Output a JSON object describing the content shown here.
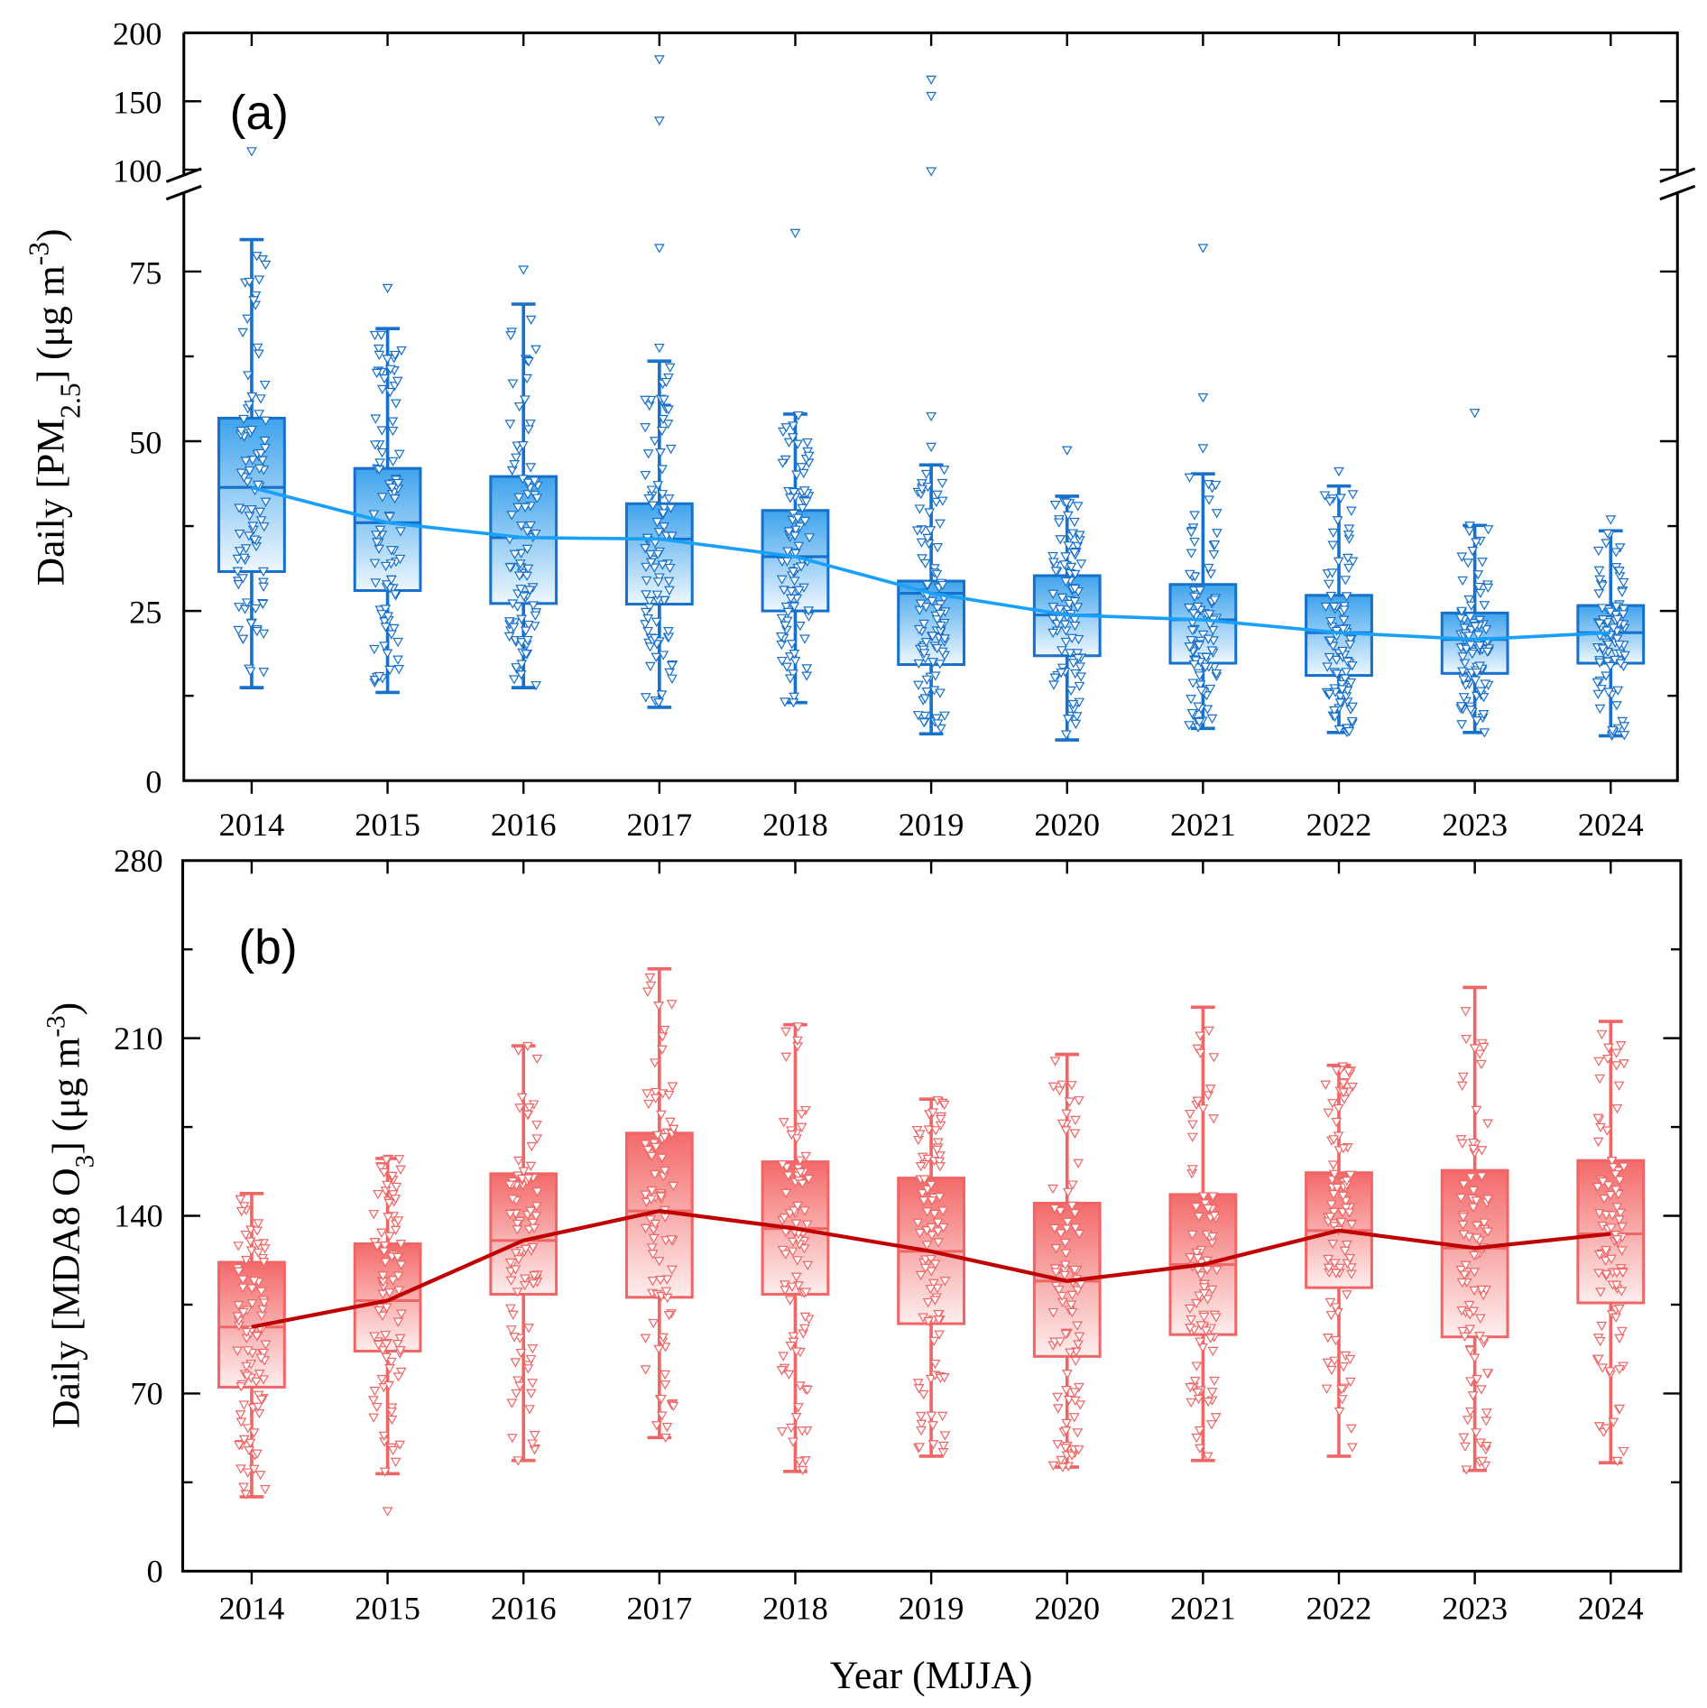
{
  "chart_data": [
    {
      "type": "box",
      "panel_label": "(a)",
      "ylabel": {
        "main": "Daily [PM",
        "sub": "2.5",
        "mid": "] (μg m",
        "sup": "-3",
        "end": ")"
      },
      "xlabel": "",
      "categories": [
        "2014",
        "2015",
        "2016",
        "2017",
        "2018",
        "2019",
        "2020",
        "2021",
        "2022",
        "2023",
        "2024"
      ],
      "y_axis_broken": true,
      "ylim_lower": [
        0,
        87
      ],
      "ylim_upper": [
        96,
        200
      ],
      "yticks_lower": [
        "0",
        "25",
        "50",
        "75"
      ],
      "yticks_upper": [
        "100",
        "150",
        "200"
      ],
      "color_edge": "#1670cc",
      "color_fill_top": "#3fa3ec",
      "color_fill_bottom": "#eef7fe",
      "color_line": "#18a0fa",
      "stats": [
        {
          "q1": 30.8,
          "median": 43.2,
          "q3": 53.4,
          "whisker_low": 13.7,
          "whisker_high": 79.7,
          "outliers": [
            113.6
          ]
        },
        {
          "q1": 28.0,
          "median": 38.0,
          "q3": 46.0,
          "whisker_low": 13.0,
          "whisker_high": 66.6,
          "outliers": [
            72.6
          ]
        },
        {
          "q1": 26.1,
          "median": 35.8,
          "q3": 44.8,
          "whisker_low": 13.7,
          "whisker_high": 70.2,
          "outliers": [
            75.3
          ]
        },
        {
          "q1": 26.0,
          "median": 35.6,
          "q3": 40.8,
          "whisker_low": 10.8,
          "whisker_high": 61.8,
          "outliers": [
            63.8,
            78.5,
            136,
            180.8
          ]
        },
        {
          "q1": 25.0,
          "median": 33.0,
          "q3": 39.8,
          "whisker_low": 11.5,
          "whisker_high": 54.0,
          "outliers": [
            80.7
          ]
        },
        {
          "q1": 17.1,
          "median": 27.6,
          "q3": 29.4,
          "whisker_low": 6.9,
          "whisker_high": 46.5,
          "outliers": [
            49.2,
            53.7,
            99,
            154,
            166
          ]
        },
        {
          "q1": 18.4,
          "median": 24.4,
          "q3": 30.2,
          "whisker_low": 6.0,
          "whisker_high": 41.9,
          "outliers": [
            48.7
          ]
        },
        {
          "q1": 17.3,
          "median": 23.7,
          "q3": 28.9,
          "whisker_low": 7.7,
          "whisker_high": 45.2,
          "outliers": [
            49.0,
            56.5,
            78.5
          ]
        },
        {
          "q1": 15.5,
          "median": 21.8,
          "q3": 27.3,
          "whisker_low": 7.1,
          "whisker_high": 43.4,
          "outliers": [
            45.6
          ]
        },
        {
          "q1": 15.8,
          "median": 20.8,
          "q3": 24.7,
          "whisker_low": 7.1,
          "whisker_high": 37.6,
          "outliers": [
            54.2
          ]
        },
        {
          "q1": 17.3,
          "median": 21.8,
          "q3": 25.8,
          "whisker_low": 6.6,
          "whisker_high": 36.8,
          "outliers": [
            38.5
          ]
        }
      ]
    },
    {
      "type": "box",
      "panel_label": "(b)",
      "ylabel": {
        "main": "Daily [MDA8 O",
        "sub": "3",
        "mid": "] (μg m",
        "sup": "-3",
        "end": ")"
      },
      "xlabel": "Year (MJJA)",
      "categories": [
        "2014",
        "2015",
        "2016",
        "2017",
        "2018",
        "2019",
        "2020",
        "2021",
        "2022",
        "2023",
        "2024"
      ],
      "ylim": [
        0,
        280
      ],
      "yticks": [
        "0",
        "70",
        "140",
        "210",
        "280"
      ],
      "color_edge": "#f06666",
      "color_fill_top": "#f46a6a",
      "color_fill_bottom": "#fdeeee",
      "color_line": "#c00000",
      "stats": [
        {
          "q1": 72.5,
          "median": 96.2,
          "q3": 121.7,
          "whisker_low": 29.3,
          "whisker_high": 148.8,
          "outliers": []
        },
        {
          "q1": 86.7,
          "median": 106.6,
          "q3": 129.0,
          "whisker_low": 38.4,
          "whisker_high": 162.6,
          "outliers": [
            23.7
          ]
        },
        {
          "q1": 109.1,
          "median": 130.3,
          "q3": 156.6,
          "whisker_low": 43.6,
          "whisker_high": 207.0,
          "outliers": []
        },
        {
          "q1": 107.9,
          "median": 141.9,
          "q3": 172.6,
          "whisker_low": 52.6,
          "whisker_high": 237.3,
          "outliers": []
        },
        {
          "q1": 109.1,
          "median": 135.0,
          "q3": 161.3,
          "whisker_low": 39.3,
          "whisker_high": 215.3,
          "outliers": []
        },
        {
          "q1": 97.5,
          "median": 126.0,
          "q3": 154.9,
          "whisker_low": 45.3,
          "whisker_high": 186.0,
          "outliers": []
        },
        {
          "q1": 84.6,
          "median": 114.3,
          "q3": 145.0,
          "whisker_low": 41.0,
          "whisker_high": 203.6,
          "outliers": []
        },
        {
          "q1": 93.2,
          "median": 120.8,
          "q3": 148.4,
          "whisker_low": 43.6,
          "whisker_high": 222.2,
          "outliers": []
        },
        {
          "q1": 111.7,
          "median": 134.2,
          "q3": 157.0,
          "whisker_low": 45.3,
          "whisker_high": 199.3,
          "outliers": []
        },
        {
          "q1": 92.3,
          "median": 127.3,
          "q3": 157.9,
          "whisker_low": 39.7,
          "whisker_high": 230.0,
          "outliers": []
        },
        {
          "q1": 105.7,
          "median": 132.9,
          "q3": 161.8,
          "whisker_low": 42.7,
          "whisker_high": 216.6,
          "outliers": []
        }
      ]
    }
  ]
}
